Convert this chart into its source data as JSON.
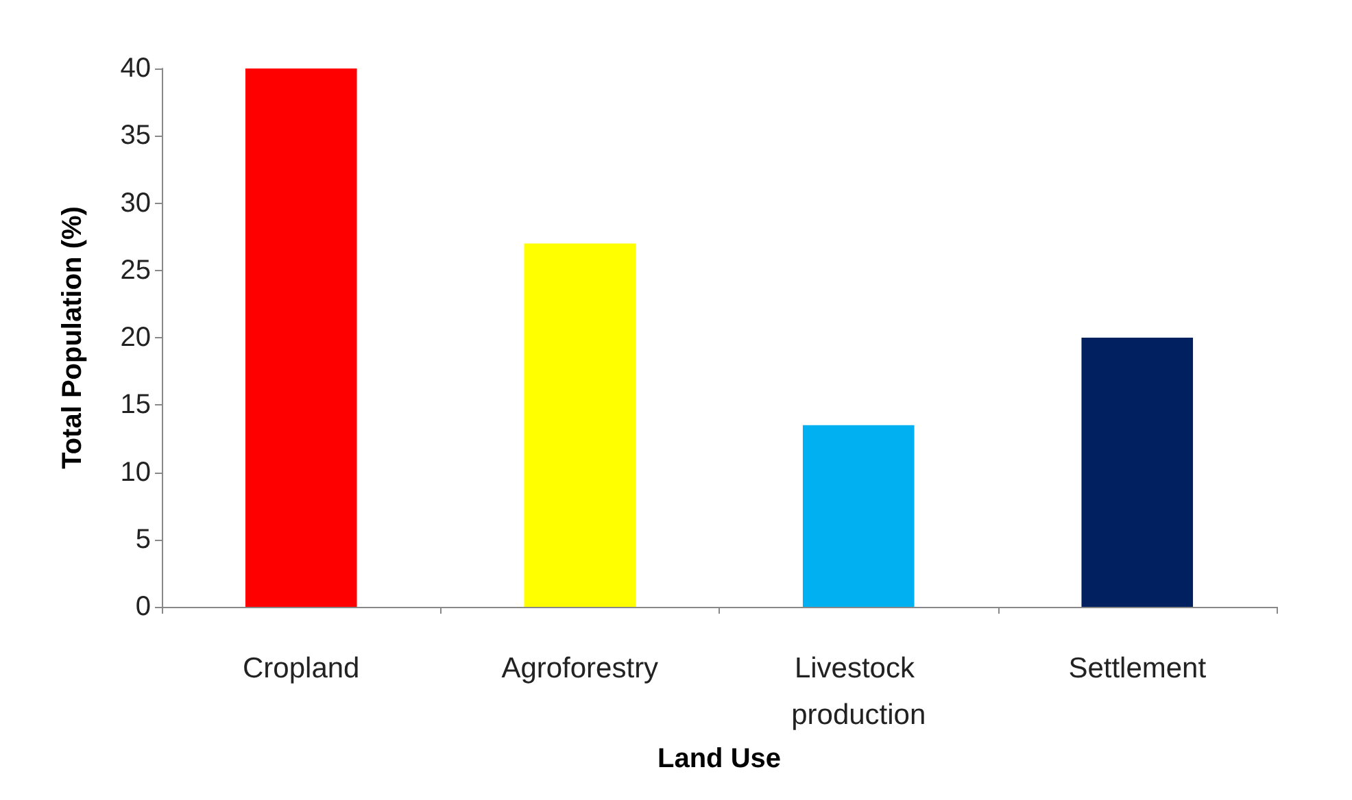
{
  "chart_data": {
    "type": "bar",
    "xlabel": "Land Use",
    "ylabel": "Total Population (%)",
    "categories": [
      "Cropland",
      "Agroforestry",
      "Livestock production",
      "Settlement"
    ],
    "values": [
      40,
      27,
      13.5,
      20
    ],
    "colors": [
      "#ff0000",
      "#ffff00",
      "#00b0f0",
      "#002060"
    ],
    "ylim": [
      0,
      40
    ],
    "yticks": [
      0,
      5,
      10,
      15,
      20,
      25,
      30,
      35,
      40
    ],
    "grid": false
  }
}
